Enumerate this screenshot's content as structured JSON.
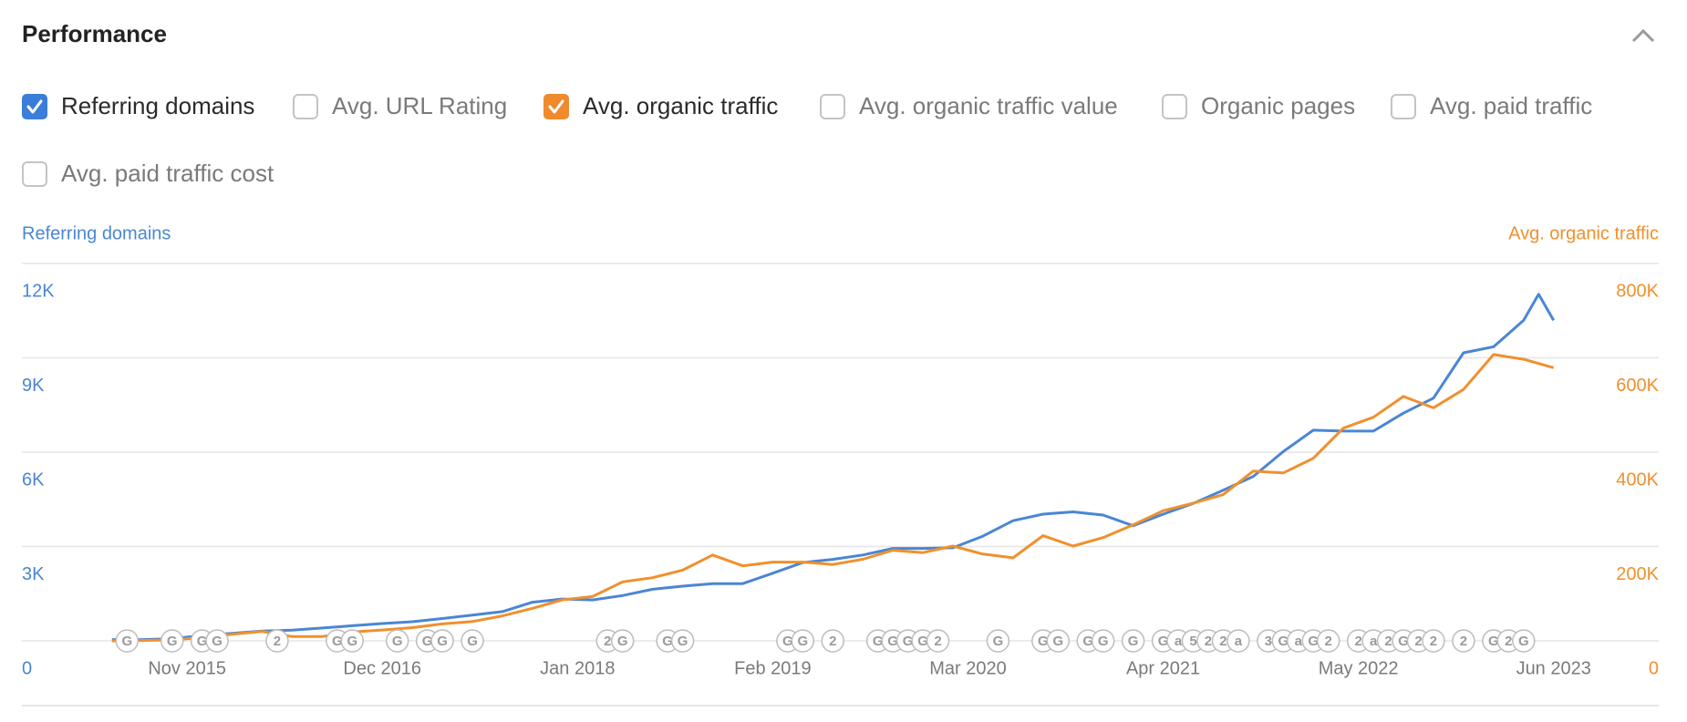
{
  "header": {
    "title": "Performance"
  },
  "filters": [
    {
      "label": "Referring domains",
      "checked": true,
      "color": "#3b7ed9"
    },
    {
      "label": "Avg. URL Rating",
      "checked": false
    },
    {
      "label": "Avg. organic traffic",
      "checked": true,
      "color": "#f08a2c"
    },
    {
      "label": "Avg. organic traffic value",
      "checked": false
    },
    {
      "label": "Organic pages",
      "checked": false
    },
    {
      "label": "Avg. paid traffic",
      "checked": false
    },
    {
      "label": "Avg. paid traffic cost",
      "checked": false
    }
  ],
  "chart_data": {
    "type": "line",
    "x": [
      "2015-06",
      "2015-08",
      "2015-10",
      "2015-12",
      "2016-02",
      "2016-04",
      "2016-06",
      "2016-08",
      "2016-10",
      "2016-12",
      "2017-02",
      "2017-04",
      "2017-06",
      "2017-08",
      "2017-10",
      "2017-12",
      "2018-02",
      "2018-04",
      "2018-06",
      "2018-08",
      "2018-10",
      "2018-12",
      "2019-02",
      "2019-04",
      "2019-06",
      "2019-08",
      "2019-10",
      "2019-12",
      "2020-02",
      "2020-04",
      "2020-06",
      "2020-08",
      "2020-10",
      "2020-12",
      "2021-02",
      "2021-04",
      "2021-06",
      "2021-08",
      "2021-10",
      "2021-12",
      "2022-02",
      "2022-04",
      "2022-06",
      "2022-08",
      "2022-10",
      "2022-12",
      "2023-02",
      "2023-04",
      "2023-05",
      "2023-06"
    ],
    "series": [
      {
        "name": "Referring domains",
        "color": "#4a86d4",
        "axis": "y",
        "values": [
          40,
          40,
          70,
          170,
          240,
          310,
          340,
          410,
          480,
          550,
          610,
          710,
          820,
          930,
          1230,
          1330,
          1300,
          1440,
          1640,
          1740,
          1820,
          1820,
          2150,
          2490,
          2590,
          2730,
          2940,
          2940,
          2960,
          3330,
          3820,
          4030,
          4100,
          4000,
          3660,
          4030,
          4370,
          4790,
          5230,
          6020,
          6700,
          6670,
          6670,
          7240,
          7720,
          9160,
          9350,
          10190,
          11020,
          10190
        ]
      },
      {
        "name": "Avg. organic traffic",
        "color": "#f0902e",
        "axis": "y2",
        "values": [
          0,
          1000,
          2000,
          7000,
          14000,
          20000,
          9000,
          9000,
          19000,
          23000,
          28000,
          36000,
          41000,
          53000,
          69000,
          87000,
          94000,
          125000,
          134000,
          150000,
          182000,
          159000,
          167000,
          167000,
          162000,
          173000,
          192000,
          187000,
          201000,
          184000,
          176000,
          223000,
          201000,
          219000,
          246000,
          276000,
          292000,
          310000,
          360000,
          356000,
          387000,
          451000,
          474000,
          518000,
          494000,
          533000,
          607000,
          597000,
          588000,
          579000
        ]
      }
    ],
    "xlim": [
      "2014-12",
      "2024-01"
    ],
    "xticks": [
      {
        "value": "2015-11",
        "label": "Nov 2015"
      },
      {
        "value": "2016-12",
        "label": "Dec 2016"
      },
      {
        "value": "2018-01",
        "label": "Jan 2018"
      },
      {
        "value": "2019-02",
        "label": "Feb 2019"
      },
      {
        "value": "2020-03",
        "label": "Mar 2020"
      },
      {
        "value": "2021-04",
        "label": "Apr 2021"
      },
      {
        "value": "2022-05",
        "label": "May 2022"
      },
      {
        "value": "2023-06",
        "label": "Jun 2023"
      }
    ],
    "ylim": [
      0,
      12000
    ],
    "yticks": [
      0,
      {
        "value": 3000,
        "label": "3K"
      },
      {
        "value": 6000,
        "label": "6K"
      },
      {
        "value": 9000,
        "label": "9K"
      },
      {
        "value": 12000,
        "label": "12K"
      }
    ],
    "y2lim": [
      0,
      800000
    ],
    "y2ticks": [
      0,
      {
        "value": 200000,
        "label": "200K"
      },
      {
        "value": 400000,
        "label": "400K"
      },
      {
        "value": 600000,
        "label": "600K"
      },
      {
        "value": 800000,
        "label": "800K"
      }
    ],
    "grid": true,
    "events": [
      {
        "date": "2015-07",
        "label": "G"
      },
      {
        "date": "2015-10",
        "label": "G"
      },
      {
        "date": "2015-12",
        "label": "G"
      },
      {
        "date": "2016-01",
        "label": "G"
      },
      {
        "date": "2016-05",
        "label": "2"
      },
      {
        "date": "2016-09",
        "label": "G"
      },
      {
        "date": "2016-10",
        "label": "G"
      },
      {
        "date": "2017-01",
        "label": "G"
      },
      {
        "date": "2017-03",
        "label": "G"
      },
      {
        "date": "2017-04",
        "label": "G"
      },
      {
        "date": "2017-06",
        "label": "G"
      },
      {
        "date": "2018-03",
        "label": "2"
      },
      {
        "date": "2018-04",
        "label": "G"
      },
      {
        "date": "2018-07",
        "label": "G"
      },
      {
        "date": "2018-08",
        "label": "G"
      },
      {
        "date": "2019-03",
        "label": "G"
      },
      {
        "date": "2019-04",
        "label": "G"
      },
      {
        "date": "2019-06",
        "label": "2"
      },
      {
        "date": "2019-09",
        "label": "G"
      },
      {
        "date": "2019-10",
        "label": "G"
      },
      {
        "date": "2019-11",
        "label": "G"
      },
      {
        "date": "2019-12",
        "label": "G"
      },
      {
        "date": "2020-01",
        "label": "2"
      },
      {
        "date": "2020-05",
        "label": "G"
      },
      {
        "date": "2020-08",
        "label": "G"
      },
      {
        "date": "2020-09",
        "label": "G"
      },
      {
        "date": "2020-11",
        "label": "G"
      },
      {
        "date": "2020-12",
        "label": "G"
      },
      {
        "date": "2021-02",
        "label": "G"
      },
      {
        "date": "2021-04",
        "label": "G"
      },
      {
        "date": "2021-05",
        "label": "a"
      },
      {
        "date": "2021-06",
        "label": "5"
      },
      {
        "date": "2021-07",
        "label": "2"
      },
      {
        "date": "2021-08",
        "label": "2"
      },
      {
        "date": "2021-09",
        "label": "a"
      },
      {
        "date": "2021-11",
        "label": "3"
      },
      {
        "date": "2021-12",
        "label": "G"
      },
      {
        "date": "2022-01",
        "label": "a"
      },
      {
        "date": "2022-02",
        "label": "G"
      },
      {
        "date": "2022-03",
        "label": "2"
      },
      {
        "date": "2022-05",
        "label": "2"
      },
      {
        "date": "2022-06",
        "label": "a"
      },
      {
        "date": "2022-07",
        "label": "2"
      },
      {
        "date": "2022-08",
        "label": "G"
      },
      {
        "date": "2022-09",
        "label": "2"
      },
      {
        "date": "2022-10",
        "label": "2"
      },
      {
        "date": "2022-12",
        "label": "2"
      },
      {
        "date": "2023-02",
        "label": "G"
      },
      {
        "date": "2023-03",
        "label": "2"
      },
      {
        "date": "2023-04",
        "label": "G"
      }
    ]
  }
}
